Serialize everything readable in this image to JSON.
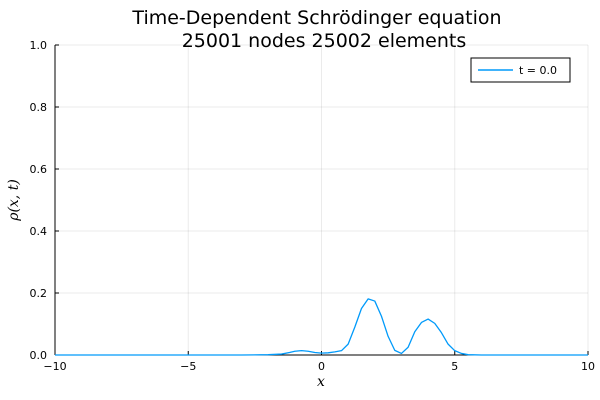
{
  "chart_data": {
    "type": "line",
    "title": [
      "Time-Dependent Schrödinger equation",
      "25001 nodes 25002 elements"
    ],
    "xlabel": "x",
    "ylabel": "ρ(x, t)",
    "xlim": [
      -10,
      10
    ],
    "ylim": [
      0,
      1
    ],
    "xticks": [
      -10,
      -5,
      0,
      5,
      10
    ],
    "xtick_labels": [
      "−10",
      "−5",
      "0",
      "5",
      "10"
    ],
    "yticks": [
      0,
      0.2,
      0.4,
      0.6,
      0.8,
      1.0
    ],
    "ytick_labels": [
      "0.0",
      "0.2",
      "0.4",
      "0.6",
      "0.8",
      "1.0"
    ],
    "grid": true,
    "legend_position": "top-right",
    "series": [
      {
        "name": "t = 0.0",
        "color": "#009AFA",
        "x": [
          -10,
          -3,
          -2,
          -1.5,
          -1.2,
          -1.0,
          -0.75,
          -0.5,
          -0.25,
          0,
          0.25,
          0.5,
          0.75,
          1.0,
          1.25,
          1.5,
          1.75,
          2.0,
          2.25,
          2.5,
          2.75,
          3.0,
          3.25,
          3.5,
          3.75,
          4.0,
          4.25,
          4.5,
          4.75,
          5.0,
          5.25,
          5.5,
          6.0,
          10
        ],
        "y": [
          0,
          0,
          0.001,
          0.003,
          0.008,
          0.012,
          0.014,
          0.012,
          0.008,
          0.006,
          0.007,
          0.01,
          0.014,
          0.035,
          0.09,
          0.15,
          0.181,
          0.174,
          0.125,
          0.06,
          0.015,
          0.005,
          0.025,
          0.075,
          0.105,
          0.116,
          0.102,
          0.072,
          0.035,
          0.014,
          0.005,
          0.001,
          0,
          0
        ]
      }
    ]
  }
}
